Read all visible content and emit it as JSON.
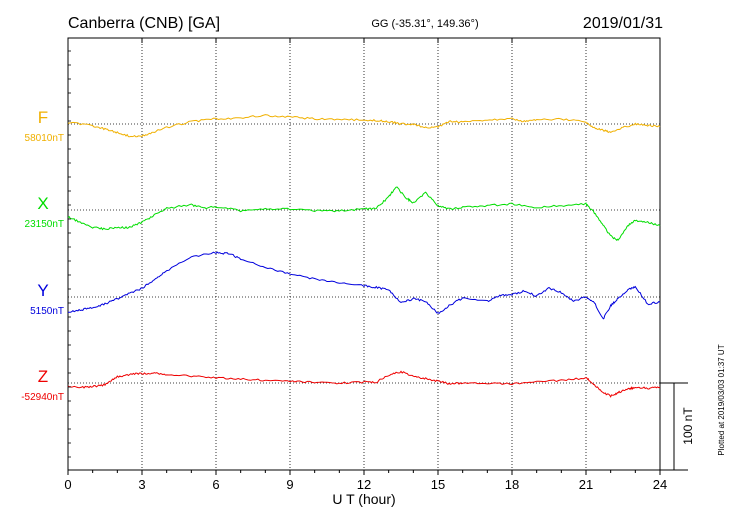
{
  "header": {
    "station": "Canberra (CNB)  [GA]",
    "coords": "GG (-35.31°, 149.36°)",
    "date": "2019/01/31"
  },
  "side_note": "Plotted at 2019/03/03 01:37 UT",
  "scale_label": "100 nT",
  "chart_data": {
    "type": "line",
    "xlabel": "U T (hour)",
    "xlim": [
      0,
      24
    ],
    "xticks": [
      0,
      3,
      6,
      9,
      12,
      15,
      18,
      21,
      24
    ],
    "grid": true,
    "scale_bar_nT": 100,
    "series": [
      {
        "name": "F",
        "baseline": "58010nT",
        "color": "#f0b000",
        "x": [
          0,
          1,
          1.5,
          2,
          2.5,
          3,
          3.5,
          4,
          5,
          6,
          7,
          8,
          9,
          10,
          11,
          12,
          12.5,
          13,
          13.5,
          14,
          14.5,
          15,
          15.5,
          16,
          17,
          18,
          18.5,
          19,
          20,
          21,
          21.3,
          21.7,
          22,
          22.5,
          23,
          23.5,
          24
        ],
        "y": [
          2,
          -2,
          -6,
          -10,
          -14,
          -14,
          -9,
          -4,
          3,
          6,
          7,
          10,
          8,
          6,
          5,
          5,
          4,
          3,
          0,
          0,
          -4,
          -3,
          3,
          2,
          4,
          6,
          3,
          5,
          6,
          2,
          -4,
          -7,
          -10,
          -4,
          0,
          -2,
          -3
        ]
      },
      {
        "name": "X",
        "baseline": "23150nT",
        "color": "#00dd00",
        "x": [
          0,
          0.5,
          1,
          1.5,
          2,
          2.5,
          3,
          3.5,
          4,
          5,
          5.5,
          6,
          7,
          8,
          9,
          10,
          11,
          12,
          12.5,
          13,
          13.3,
          13.7,
          14,
          14.5,
          15,
          15.5,
          16,
          17,
          18,
          19,
          20,
          21,
          21.3,
          21.7,
          22,
          22.3,
          22.7,
          23,
          23.5,
          24
        ],
        "y": [
          -8,
          -14,
          -20,
          -22,
          -20,
          -20,
          -14,
          -6,
          2,
          6,
          2,
          4,
          -1,
          1,
          1,
          -1,
          -1,
          1,
          2,
          15,
          27,
          14,
          8,
          20,
          5,
          1,
          3,
          5,
          7,
          3,
          5,
          7,
          -2,
          -18,
          -30,
          -35,
          -18,
          -12,
          -14,
          -18
        ]
      },
      {
        "name": "Y",
        "baseline": "5150nT",
        "color": "#0000dd",
        "x": [
          0,
          0.5,
          1,
          1.5,
          2,
          2.5,
          3,
          3.5,
          4,
          5,
          6,
          6.5,
          7,
          8,
          9,
          10,
          11,
          12,
          12.5,
          13,
          13.5,
          14,
          14.5,
          15,
          15.5,
          16,
          17,
          17.5,
          18,
          18.5,
          19,
          19.5,
          20,
          20.5,
          21,
          21.3,
          21.7,
          22,
          22.3,
          22.7,
          23,
          23.5,
          24
        ],
        "y": [
          -17,
          -15,
          -12,
          -8,
          -2,
          4,
          10,
          20,
          30,
          46,
          51,
          50,
          44,
          34,
          26,
          21,
          16,
          13,
          11,
          8,
          -7,
          -2,
          -5,
          -19,
          -9,
          -1,
          -5,
          2,
          3,
          7,
          1,
          10,
          5,
          -5,
          0,
          -5,
          -25,
          -10,
          -2,
          8,
          12,
          -8,
          -6
        ]
      },
      {
        "name": "Z",
        "baseline": "-52940nT",
        "color": "#ee0000",
        "x": [
          0,
          0.5,
          1,
          1.5,
          2,
          2.5,
          3,
          3.5,
          4,
          5,
          6,
          7,
          8,
          9,
          10,
          11,
          12,
          12.5,
          13,
          13.5,
          14,
          14.5,
          15,
          15.5,
          16,
          17,
          18,
          19,
          20,
          21,
          21.3,
          21.7,
          22,
          22.3,
          22.7,
          23,
          23.5,
          24
        ],
        "y": [
          -4,
          -5,
          -4,
          -2,
          7,
          10,
          11,
          11,
          10,
          8,
          6,
          5,
          3,
          2,
          1,
          0,
          1,
          1,
          9,
          13,
          8,
          5,
          2,
          -1,
          0,
          0,
          -1,
          1,
          3,
          6,
          -1,
          -11,
          -15,
          -11,
          -7,
          -5,
          -6,
          -5
        ]
      }
    ]
  }
}
